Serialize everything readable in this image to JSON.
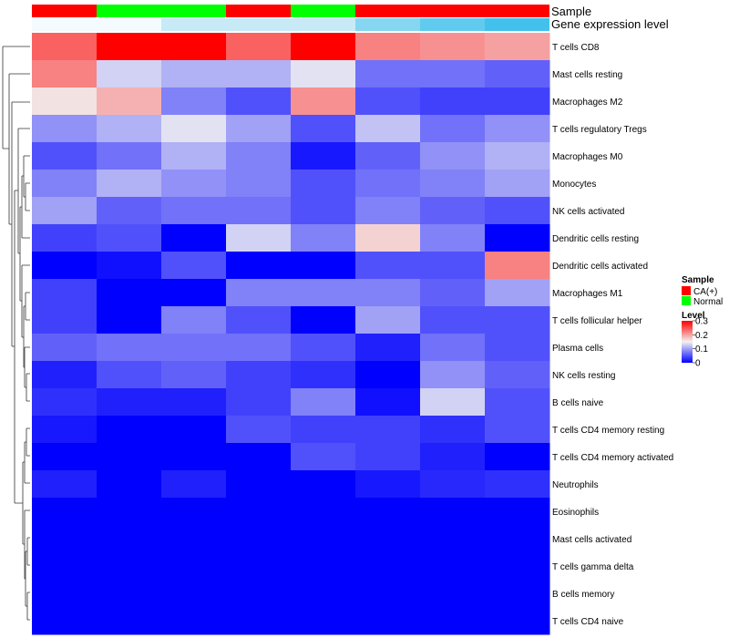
{
  "chart_data": {
    "type": "heatmap",
    "annotation_labels": [
      "Sample",
      "Gene expression level"
    ],
    "columns": [
      {
        "sample": "CA(+)",
        "expression": "low"
      },
      {
        "sample": "Normal",
        "expression": "low"
      },
      {
        "sample": "Normal",
        "expression": "mid"
      },
      {
        "sample": "CA(+)",
        "expression": "mid"
      },
      {
        "sample": "Normal",
        "expression": "mid"
      },
      {
        "sample": "CA(+)",
        "expression": "high"
      },
      {
        "sample": "CA(+)",
        "expression": "higher"
      },
      {
        "sample": "CA(+)",
        "expression": "highest"
      }
    ],
    "rows": [
      "T cells CD8",
      "Mast cells resting",
      "Macrophages M2",
      "T cells regulatory  Tregs",
      "Macrophages M0",
      "Monocytes",
      "NK cells activated",
      "Dendritic cells resting",
      "Dendritic cells activated",
      "Macrophages M1",
      "T cells follicular helper",
      "Plasma cells",
      "NK cells resting",
      "B cells naive",
      "T cells CD4 memory resting",
      "T cells CD4 memory activated",
      "Neutrophils",
      "Eosinophils",
      "Mast cells activated",
      "T cells gamma delta",
      "B cells memory",
      "T cells CD4 naive"
    ],
    "values": [
      [
        0.24,
        0.3,
        0.3,
        0.24,
        0.3,
        0.22,
        0.21,
        0.2
      ],
      [
        0.22,
        0.13,
        0.11,
        0.11,
        0.14,
        0.07,
        0.07,
        0.06
      ],
      [
        0.16,
        0.19,
        0.08,
        0.05,
        0.21,
        0.05,
        0.04,
        0.04
      ],
      [
        0.09,
        0.11,
        0.14,
        0.1,
        0.05,
        0.12,
        0.07,
        0.09
      ],
      [
        0.05,
        0.07,
        0.11,
        0.08,
        0.015,
        0.06,
        0.09,
        0.11
      ],
      [
        0.08,
        0.11,
        0.09,
        0.08,
        0.05,
        0.07,
        0.08,
        0.1
      ],
      [
        0.1,
        0.06,
        0.07,
        0.07,
        0.05,
        0.08,
        0.06,
        0.05
      ],
      [
        0.04,
        0.05,
        0.0,
        0.13,
        0.08,
        0.17,
        0.08,
        0.0
      ],
      [
        0.0,
        0.01,
        0.05,
        0.0,
        0.0,
        0.05,
        0.05,
        0.22
      ],
      [
        0.04,
        0.0,
        0.0,
        0.08,
        0.08,
        0.08,
        0.06,
        0.1
      ],
      [
        0.04,
        0.0,
        0.08,
        0.05,
        0.0,
        0.1,
        0.05,
        0.05
      ],
      [
        0.06,
        0.07,
        0.07,
        0.07,
        0.05,
        0.02,
        0.07,
        0.05
      ],
      [
        0.02,
        0.05,
        0.06,
        0.04,
        0.03,
        0.0,
        0.09,
        0.06
      ],
      [
        0.03,
        0.02,
        0.02,
        0.04,
        0.08,
        0.01,
        0.13,
        0.05
      ],
      [
        0.015,
        0.0,
        0.0,
        0.05,
        0.04,
        0.04,
        0.03,
        0.05
      ],
      [
        0.0,
        0.0,
        0.0,
        0.0,
        0.05,
        0.04,
        0.02,
        0.0
      ],
      [
        0.02,
        0.0,
        0.02,
        0.0,
        0.0,
        0.015,
        0.025,
        0.03
      ],
      [
        0.0,
        0.0,
        0.0,
        0.0,
        0.0,
        0.0,
        0.0,
        0.0
      ],
      [
        0.0,
        0.0,
        0.0,
        0.0,
        0.0,
        0.0,
        0.0,
        0.0
      ],
      [
        0.0,
        0.0,
        0.0,
        0.0,
        0.0,
        0.0,
        0.0,
        0.0
      ],
      [
        0.0,
        0.0,
        0.0,
        0.0,
        0.0,
        0.0,
        0.0,
        0.0
      ],
      [
        0.0,
        0.0,
        0.0,
        0.0,
        0.0,
        0.0,
        0.0,
        0.0
      ]
    ],
    "color_scale": {
      "min": 0,
      "mid": 0.15,
      "max": 0.3,
      "low_color": "#0000ff",
      "mid_color": "#f2f2f2",
      "high_color": "#ff0000"
    },
    "expression_colors": {
      "low": "#f4fbfe",
      "mid": "#c8eaf7",
      "high": "#86d6f1",
      "higher": "#61cbef",
      "highest": "#42c1ec"
    },
    "legend": {
      "sample_title": "Sample",
      "sample_entries": [
        {
          "label": "CA(+)",
          "color": "#ff0000"
        },
        {
          "label": "Normal",
          "color": "#00ff00"
        }
      ],
      "level_title": "Level",
      "level_ticks": [
        {
          "label": "0.3",
          "value": 0.3
        },
        {
          "label": "0.2",
          "value": 0.2
        },
        {
          "label": "0.1",
          "value": 0.1
        },
        {
          "label": "0",
          "value": 0
        }
      ]
    },
    "dendrogram": "row clustering tree shown at left",
    "grid": false
  }
}
